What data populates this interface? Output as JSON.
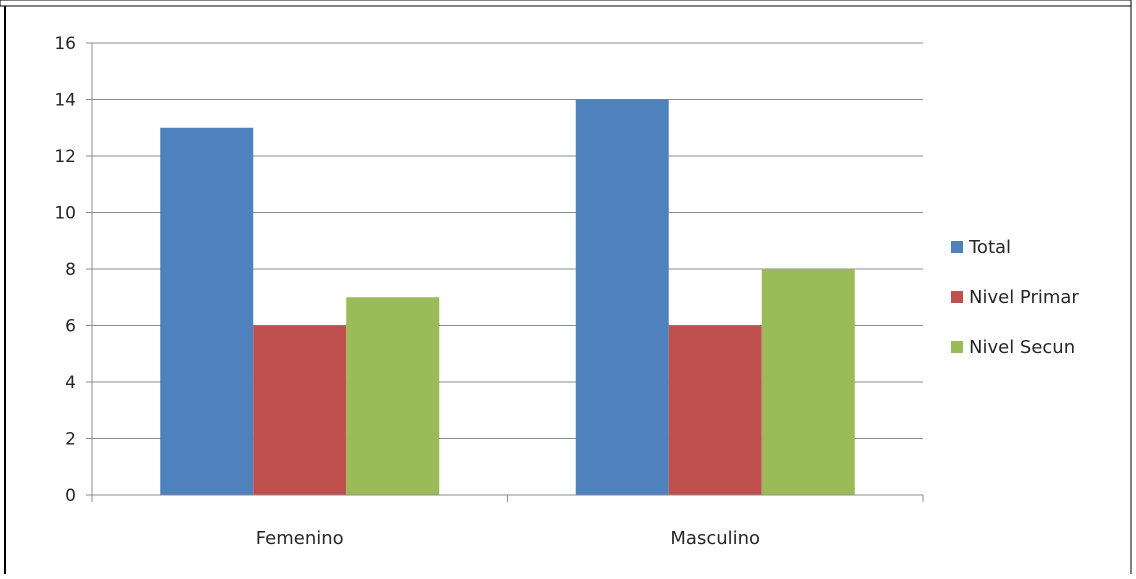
{
  "chart_data": {
    "type": "bar",
    "categories": [
      "Femenino",
      "Masculino"
    ],
    "series": [
      {
        "name": "Total",
        "values": [
          13,
          14
        ],
        "color": "#4F81BD"
      },
      {
        "name": "Nivel Primar",
        "values": [
          6,
          6
        ],
        "color": "#C0504D"
      },
      {
        "name": "Nivel Secun",
        "values": [
          7,
          8
        ],
        "color": "#9BBB59"
      }
    ],
    "yticks": [
      "0",
      "2",
      "4",
      "6",
      "8",
      "10",
      "12",
      "14",
      "16"
    ],
    "ylim": [
      0,
      16
    ],
    "grid": true,
    "legend": "right",
    "title": "",
    "xlabel": "",
    "ylabel": ""
  }
}
